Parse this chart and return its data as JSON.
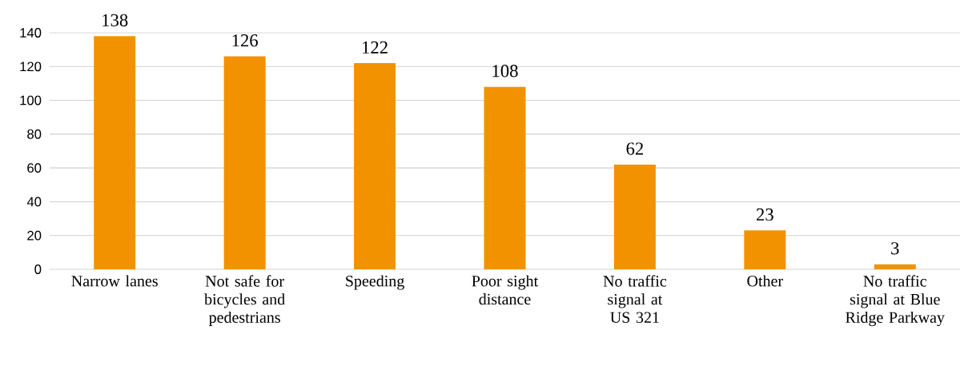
{
  "chart_data": {
    "type": "bar",
    "categories": [
      "Narrow lanes",
      "Not safe for bicycles and pedestrians",
      "Speeding",
      "Poor sight distance",
      "No traffic signal at US 321",
      "Other",
      "No traffic signal at Blue Ridge Parkway"
    ],
    "values": [
      138,
      126,
      122,
      108,
      62,
      23,
      3
    ],
    "color": "#f39200",
    "ylim": [
      0,
      140
    ],
    "yticks": [
      0,
      20,
      40,
      60,
      80,
      100,
      120,
      140
    ],
    "grid": "y",
    "data_labels": true
  }
}
